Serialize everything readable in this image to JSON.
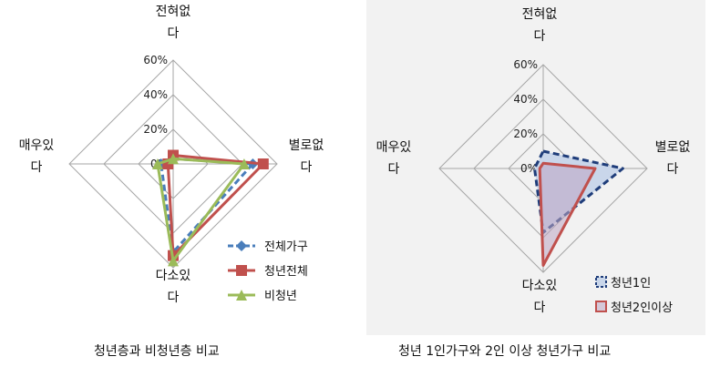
{
  "charts": [
    {
      "caption": "청년층과 비청년층 비교",
      "chart_data": {
        "type": "radar",
        "axes": [
          [
            "전혀없",
            "다"
          ],
          [
            "별로없",
            "다"
          ],
          [
            "다소있",
            "다"
          ],
          [
            "매우있",
            "다"
          ]
        ],
        "tick_labels": [
          "0%",
          "20%",
          "40%",
          "60%"
        ],
        "rlim": [
          0,
          60
        ],
        "series": [
          {
            "name": "전체가구",
            "values": [
              3,
              46,
              51,
              7
            ],
            "color": "#4a7ebb",
            "marker": "diamond",
            "dashed": true
          },
          {
            "name": "청년전체",
            "values": [
              5,
              52,
              53,
              3
            ],
            "color": "#c0504d",
            "marker": "square",
            "dashed": false
          },
          {
            "name": "비청년",
            "values": [
              3,
              41,
              56,
              9
            ],
            "color": "#9bbb59",
            "marker": "triangle",
            "dashed": false
          }
        ]
      }
    },
    {
      "caption": "청년 1인가구와 2인 이상 청년가구 비교",
      "chart_data": {
        "type": "radar",
        "axes": [
          [
            "전혀없",
            "다"
          ],
          [
            "별로없",
            "다"
          ],
          [
            "다소있",
            "다"
          ],
          [
            "매우있",
            "다"
          ]
        ],
        "tick_labels": [
          "0%",
          "20%",
          "40%",
          "60%"
        ],
        "rlim": [
          0,
          60
        ],
        "series": [
          {
            "name": "청년1인",
            "values": [
              10,
              46,
              37,
              5
            ],
            "color": "#1f3d7a",
            "fill": "#c9d6ea",
            "dashed": true
          },
          {
            "name": "청년2인이상",
            "values": [
              3,
              30,
              56,
              2
            ],
            "color": "#c0504d",
            "fill": "rgba(190,165,195,0.55)",
            "dashed": false
          }
        ]
      }
    }
  ]
}
